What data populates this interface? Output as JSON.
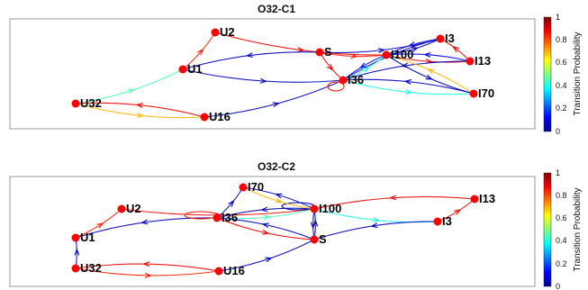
{
  "colorbar": {
    "label": "Transition Probability",
    "ticks": [
      "1",
      "0.8",
      "0.6",
      "0.4",
      "0.2",
      "0"
    ]
  },
  "panels": [
    {
      "title": "O32-C1",
      "nodes": [
        "U2",
        "S",
        "I3",
        "I100",
        "I13",
        "U1",
        "I36",
        "I70",
        "U32",
        "U16"
      ],
      "edges": [
        {
          "from": "U2",
          "to": "I100",
          "prob": 0.9
        },
        {
          "from": "U1",
          "to": "U2",
          "prob": 0.85
        },
        {
          "from": "S",
          "to": "U1",
          "prob": 0.05
        },
        {
          "from": "U1",
          "to": "I36",
          "prob": 0.05
        },
        {
          "from": "U32",
          "to": "U1",
          "prob": 0.45
        },
        {
          "from": "U32",
          "to": "U16",
          "prob": 0.7
        },
        {
          "from": "U16",
          "to": "U32",
          "prob": 0.9
        },
        {
          "from": "U16",
          "to": "I36",
          "prob": 0.05
        },
        {
          "from": "S",
          "to": "I3",
          "prob": 0.05
        },
        {
          "from": "S",
          "to": "I100",
          "prob": 0.85
        },
        {
          "from": "S",
          "to": "I36",
          "prob": 0.9
        },
        {
          "from": "I100",
          "to": "I3",
          "prob": 0.05
        },
        {
          "from": "I3",
          "to": "I100",
          "prob": 0.1
        },
        {
          "from": "I100",
          "to": "I13",
          "prob": 0.9
        },
        {
          "from": "I13",
          "to": "I3",
          "prob": 0.9
        },
        {
          "from": "I13",
          "to": "I100",
          "prob": 0.1
        },
        {
          "from": "I3",
          "to": "I36",
          "prob": 0.05
        },
        {
          "from": "I13",
          "to": "I36",
          "prob": 0.05
        },
        {
          "from": "I36",
          "to": "I100",
          "prob": 0.4
        },
        {
          "from": "I100",
          "to": "I36",
          "prob": 0.1
        },
        {
          "from": "I36",
          "to": "I70",
          "prob": 0.4
        },
        {
          "from": "I70",
          "to": "I36",
          "prob": 0.05
        },
        {
          "from": "I70",
          "to": "I100",
          "prob": 0.7
        },
        {
          "from": "I100",
          "to": "I70",
          "prob": 0.05
        },
        {
          "from": "I36",
          "to": "I36",
          "prob": 0.85
        }
      ]
    },
    {
      "title": "O32-C2",
      "nodes": [
        "I70",
        "I100",
        "I13",
        "U2",
        "I36",
        "I3",
        "U1",
        "S",
        "U32",
        "U16"
      ],
      "edges": [
        {
          "from": "U1",
          "to": "U2",
          "prob": 0.85
        },
        {
          "from": "U2",
          "to": "I100",
          "prob": 0.9
        },
        {
          "from": "I36",
          "to": "U1",
          "prob": 0.05
        },
        {
          "from": "U32",
          "to": "U1",
          "prob": 0.1
        },
        {
          "from": "U32",
          "to": "U16",
          "prob": 0.85
        },
        {
          "from": "U16",
          "to": "U32",
          "prob": 0.9
        },
        {
          "from": "U16",
          "to": "S",
          "prob": 0.05
        },
        {
          "from": "I36",
          "to": "I36",
          "prob": 0.85
        },
        {
          "from": "I100",
          "to": "I100",
          "prob": 0.05
        },
        {
          "from": "I36",
          "to": "I100",
          "prob": 0.45
        },
        {
          "from": "I100",
          "to": "I36",
          "prob": 0.05
        },
        {
          "from": "I36",
          "to": "I70",
          "prob": 0.05
        },
        {
          "from": "I70",
          "to": "I100",
          "prob": 0.7
        },
        {
          "from": "I100",
          "to": "I70",
          "prob": 0.05
        },
        {
          "from": "I13",
          "to": "I100",
          "prob": 0.9
        },
        {
          "from": "I100",
          "to": "I3",
          "prob": 0.4
        },
        {
          "from": "I3",
          "to": "S",
          "prob": 0.05
        },
        {
          "from": "S",
          "to": "I100",
          "prob": 0.05
        },
        {
          "from": "I100",
          "to": "S",
          "prob": 0.05
        },
        {
          "from": "S",
          "to": "I36",
          "prob": 0.05
        },
        {
          "from": "I36",
          "to": "S",
          "prob": 0.9
        },
        {
          "from": "I3",
          "to": "I13",
          "prob": 0.9
        }
      ]
    }
  ]
}
